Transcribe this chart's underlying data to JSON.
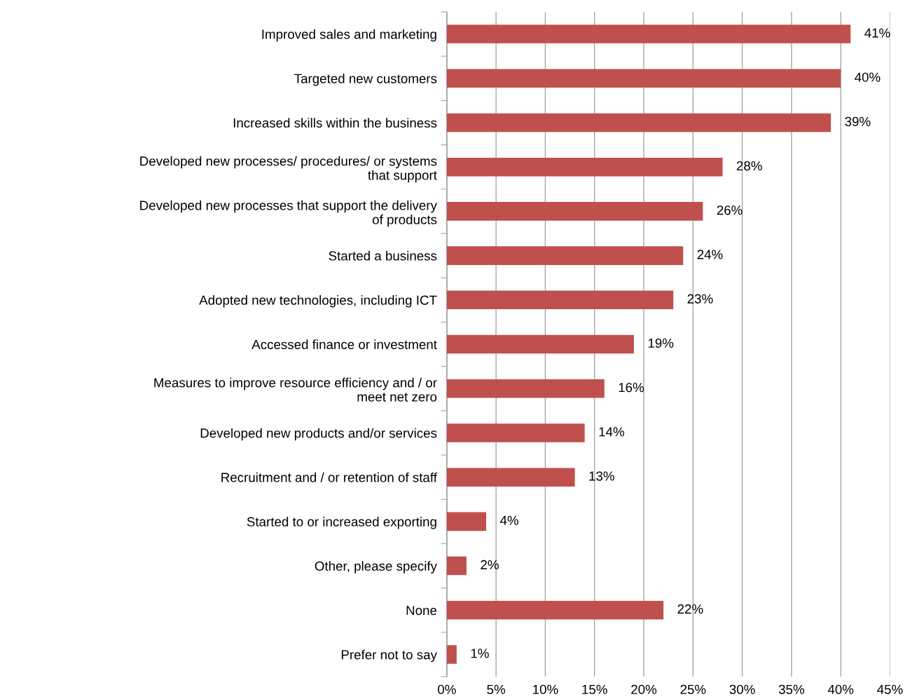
{
  "chart_data": {
    "type": "bar",
    "orientation": "horizontal",
    "categories": [
      "Improved sales and marketing",
      "Targeted new customers",
      "Increased skills within the business",
      "Developed new processes/ procedures/ or systems\nthat support",
      "Developed new processes that support the delivery\nof products",
      "Started a business",
      "Adopted new technologies, including ICT",
      "Accessed finance or investment",
      "Measures to improve resource efficiency and / or\nmeet net zero",
      "Developed new products and/or services",
      "Recruitment and / or retention of staff",
      "Started to or increased exporting",
      "Other, please specify",
      "None",
      "Prefer not to say"
    ],
    "values": [
      41,
      40,
      39,
      28,
      26,
      24,
      23,
      19,
      16,
      14,
      13,
      4,
      2,
      22,
      1
    ],
    "value_labels": [
      "41%",
      "40%",
      "39%",
      "28%",
      "26%",
      "24%",
      "23%",
      "19%",
      "16%",
      "14%",
      "13%",
      "4%",
      "2%",
      "22%",
      "1%"
    ],
    "color": "#c0504d",
    "xlim": [
      0,
      45
    ],
    "xticks": [
      {
        "value": 0,
        "label": "0%"
      },
      {
        "value": 5,
        "label": "5%"
      },
      {
        "value": 10,
        "label": "10%"
      },
      {
        "value": 15,
        "label": "15%"
      },
      {
        "value": 20,
        "label": "20%"
      },
      {
        "value": 25,
        "label": "25%"
      },
      {
        "value": 30,
        "label": "30%"
      },
      {
        "value": 35,
        "label": "35%"
      },
      {
        "value": 40,
        "label": "40%"
      },
      {
        "value": 45,
        "label": "45%"
      }
    ],
    "grid": "x",
    "legend": false
  }
}
